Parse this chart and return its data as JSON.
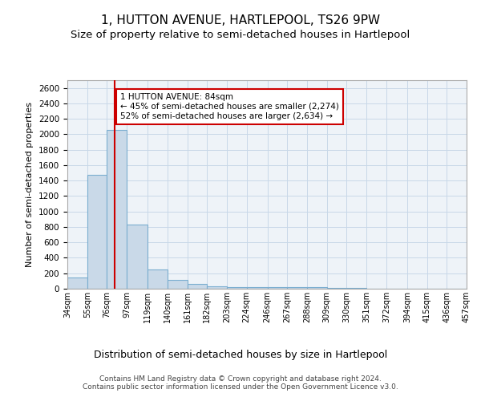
{
  "title1": "1, HUTTON AVENUE, HARTLEPOOL, TS26 9PW",
  "title2": "Size of property relative to semi-detached houses in Hartlepool",
  "xlabel": "Distribution of semi-detached houses by size in Hartlepool",
  "ylabel": "Number of semi-detached properties",
  "bins": [
    34,
    55,
    76,
    97,
    119,
    140,
    161,
    182,
    203,
    224,
    246,
    267,
    288,
    309,
    330,
    351,
    372,
    394,
    415,
    436,
    457
  ],
  "counts": [
    150,
    1470,
    2060,
    830,
    250,
    110,
    60,
    35,
    25,
    25,
    25,
    20,
    20,
    10,
    8,
    5,
    3,
    2,
    1,
    0
  ],
  "bar_color": "#c9d9e8",
  "bar_edge_color": "#7baed0",
  "property_size": 84,
  "red_line_color": "#cc0000",
  "annotation_text": "1 HUTTON AVENUE: 84sqm\n← 45% of semi-detached houses are smaller (2,274)\n52% of semi-detached houses are larger (2,634) →",
  "annotation_box_color": "#ffffff",
  "annotation_box_edge": "#cc0000",
  "ylim": [
    0,
    2700
  ],
  "yticks": [
    0,
    200,
    400,
    600,
    800,
    1000,
    1200,
    1400,
    1600,
    1800,
    2000,
    2200,
    2400,
    2600
  ],
  "grid_color": "#c8d8e8",
  "background_color": "#eef3f8",
  "footer_text": "Contains HM Land Registry data © Crown copyright and database right 2024.\nContains public sector information licensed under the Open Government Licence v3.0.",
  "title1_fontsize": 11,
  "title2_fontsize": 9.5,
  "xlabel_fontsize": 9,
  "ylabel_fontsize": 8
}
